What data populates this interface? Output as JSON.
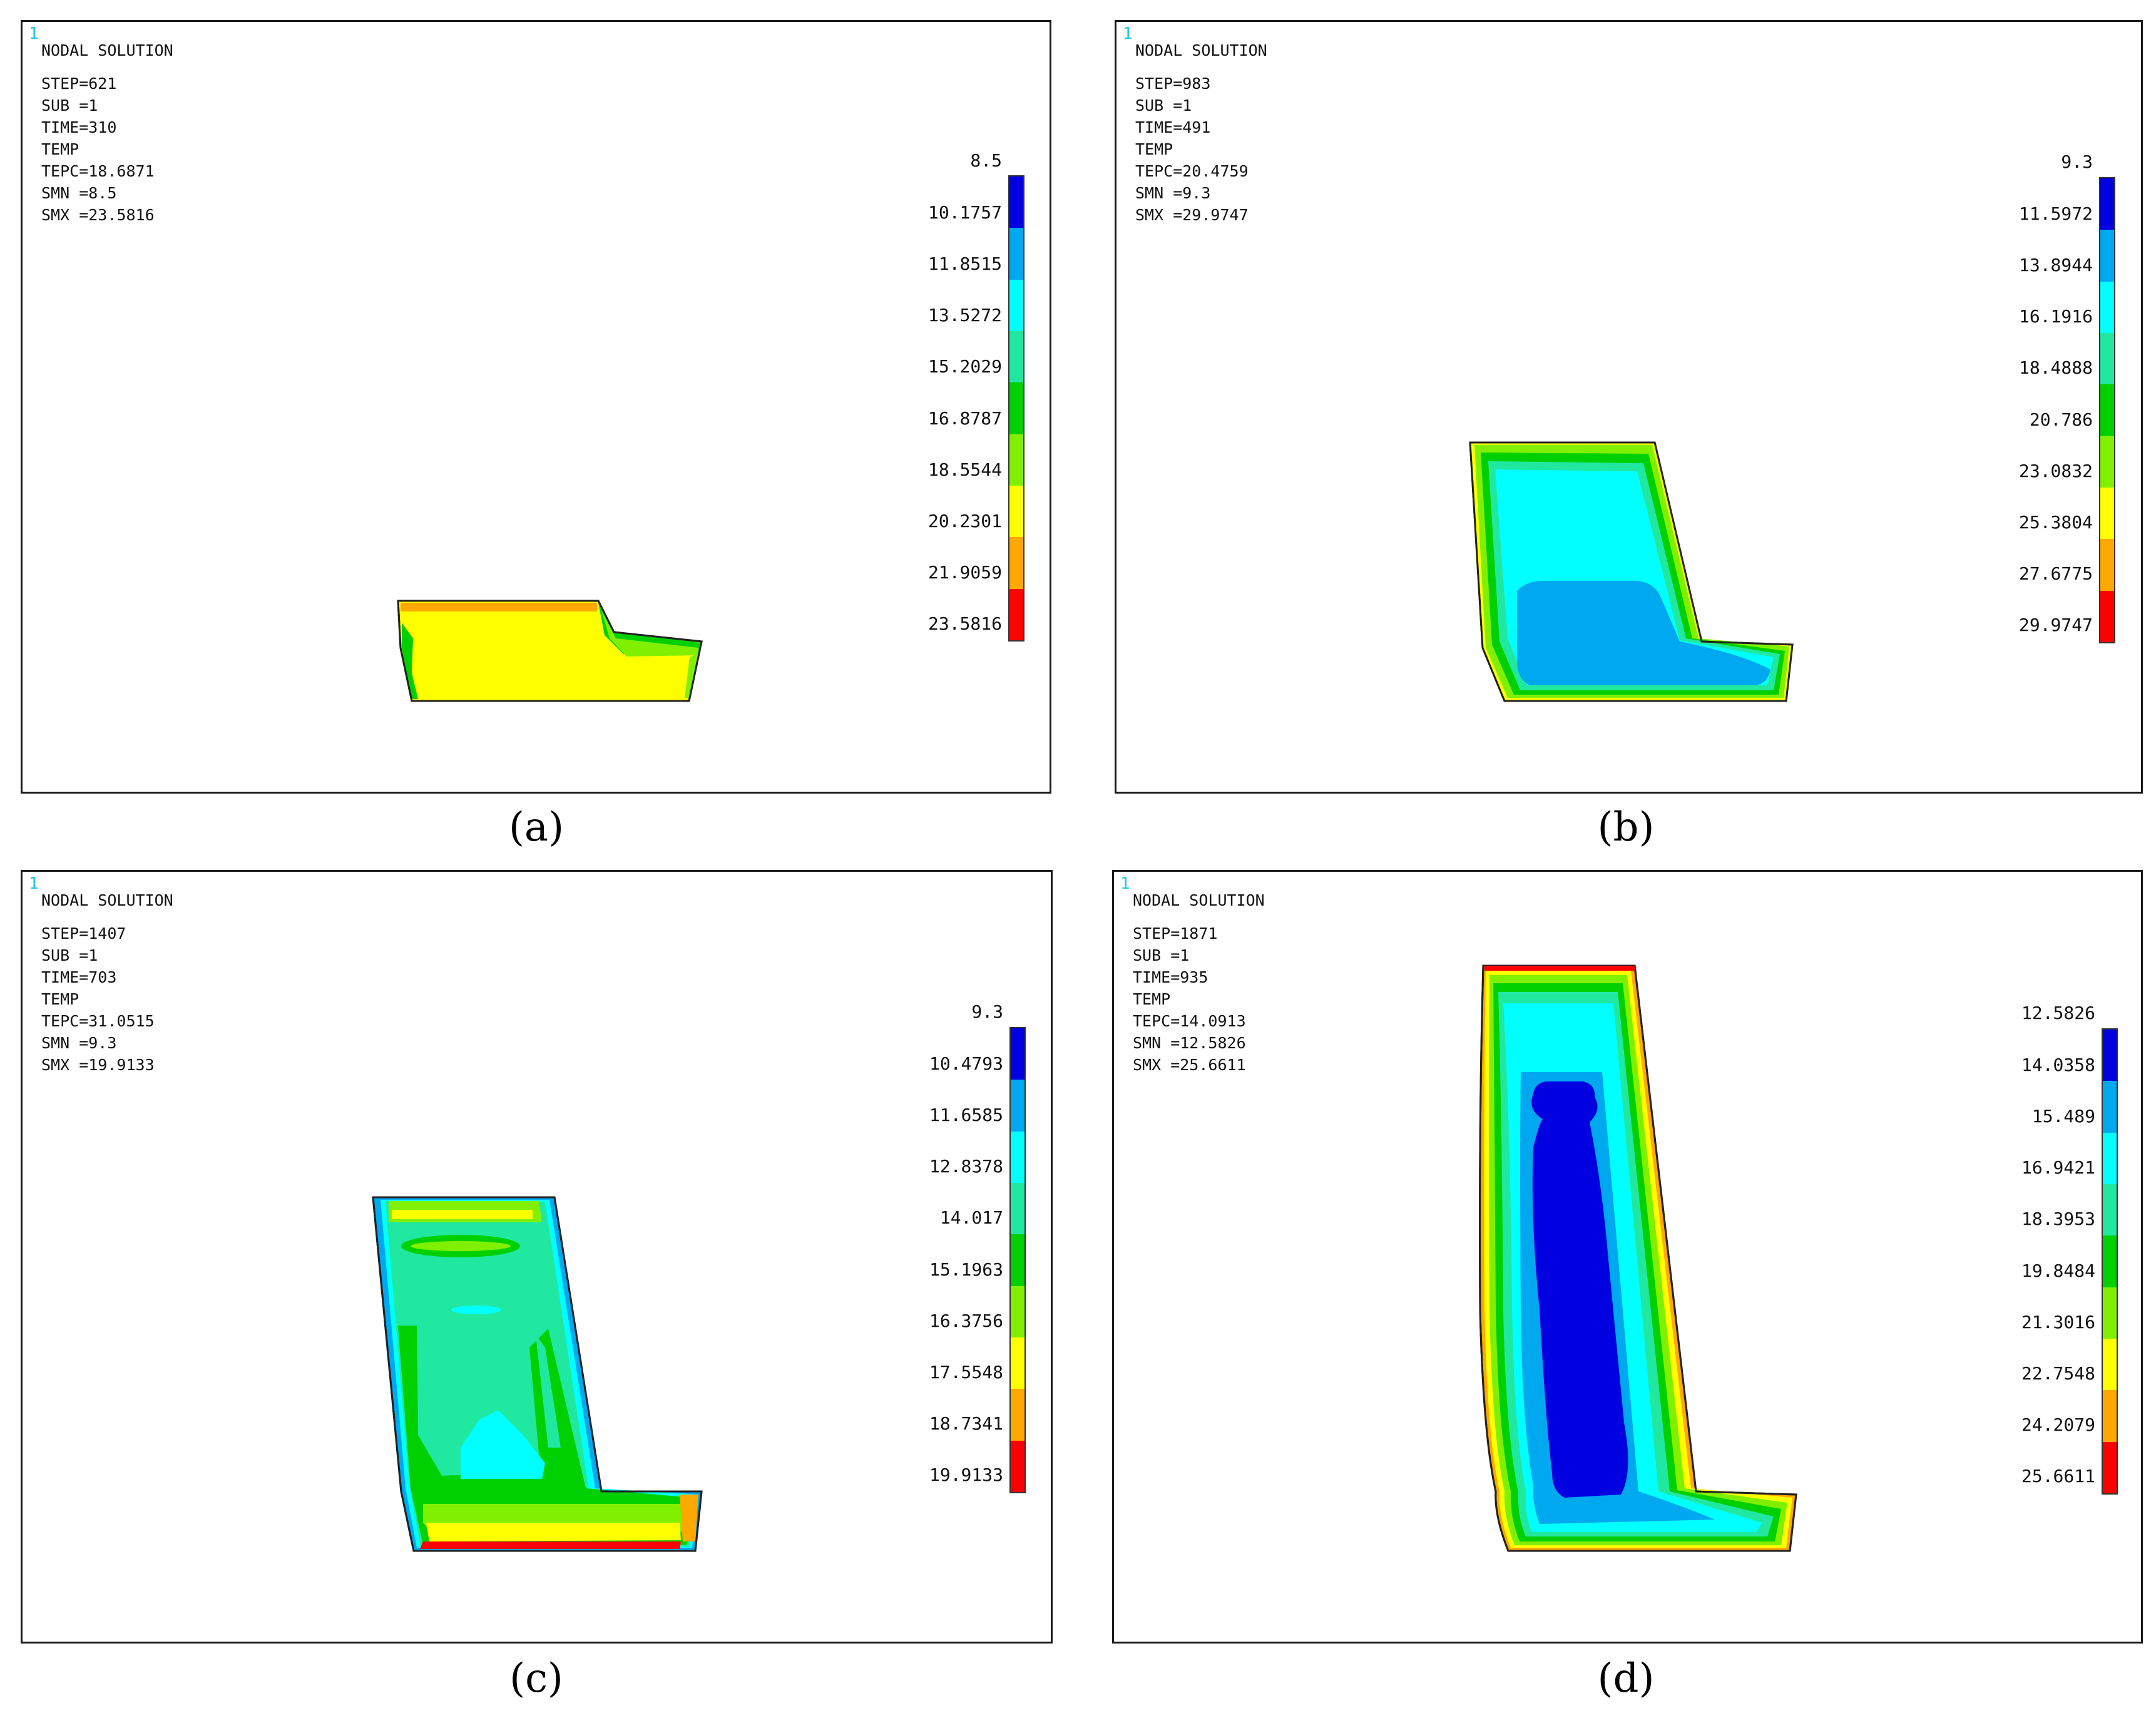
{
  "legend_colors": [
    "#0000e0",
    "#00a8f0",
    "#00ffff",
    "#20e8a0",
    "#00d000",
    "#80f000",
    "#ffff00",
    "#ffa800",
    "#ff0000"
  ],
  "panels": [
    {
      "caption": "(a)",
      "window_number": "1",
      "title": "NODAL SOLUTION",
      "step": "STEP=621",
      "sub": "SUB =1",
      "time": "TIME=310",
      "item": "TEMP",
      "tepc": "TEPC=18.6871",
      "smn": "SMN =8.5",
      "smx": "SMX =23.5816",
      "legend": [
        "8.5",
        "10.1757",
        "11.8515",
        "13.5272",
        "15.2029",
        "16.8787",
        "18.5544",
        "20.2301",
        "21.9059",
        "23.5816"
      ]
    },
    {
      "caption": "(b)",
      "window_number": "1",
      "title": "NODAL SOLUTION",
      "step": "STEP=983",
      "sub": "SUB =1",
      "time": "TIME=491",
      "item": "TEMP",
      "tepc": "TEPC=20.4759",
      "smn": "SMN =9.3",
      "smx": "SMX =29.9747",
      "legend": [
        "9.3",
        "11.5972",
        "13.8944",
        "16.1916",
        "18.4888",
        "20.786",
        "23.0832",
        "25.3804",
        "27.6775",
        "29.9747"
      ]
    },
    {
      "caption": "(c)",
      "window_number": "1",
      "title": "NODAL SOLUTION",
      "step": "STEP=1407",
      "sub": "SUB =1",
      "time": "TIME=703",
      "item": "TEMP",
      "tepc": "TEPC=31.0515",
      "smn": "SMN =9.3",
      "smx": "SMX =19.9133",
      "legend": [
        "9.3",
        "10.4793",
        "11.6585",
        "12.8378",
        "14.017",
        "15.1963",
        "16.3756",
        "17.5548",
        "18.7341",
        "19.9133"
      ]
    },
    {
      "caption": "(d)",
      "window_number": "1",
      "title": "NODAL SOLUTION",
      "step": "STEP=1871",
      "sub": "SUB =1",
      "time": "TIME=935",
      "item": "TEMP",
      "tepc": "TEPC=14.0913",
      "smn": "SMN =12.5826",
      "smx": "SMX =25.6611",
      "legend": [
        "12.5826",
        "14.0358",
        "15.489",
        "16.9421",
        "18.3953",
        "19.8484",
        "21.3016",
        "22.7548",
        "24.2079",
        "25.6611"
      ]
    }
  ]
}
